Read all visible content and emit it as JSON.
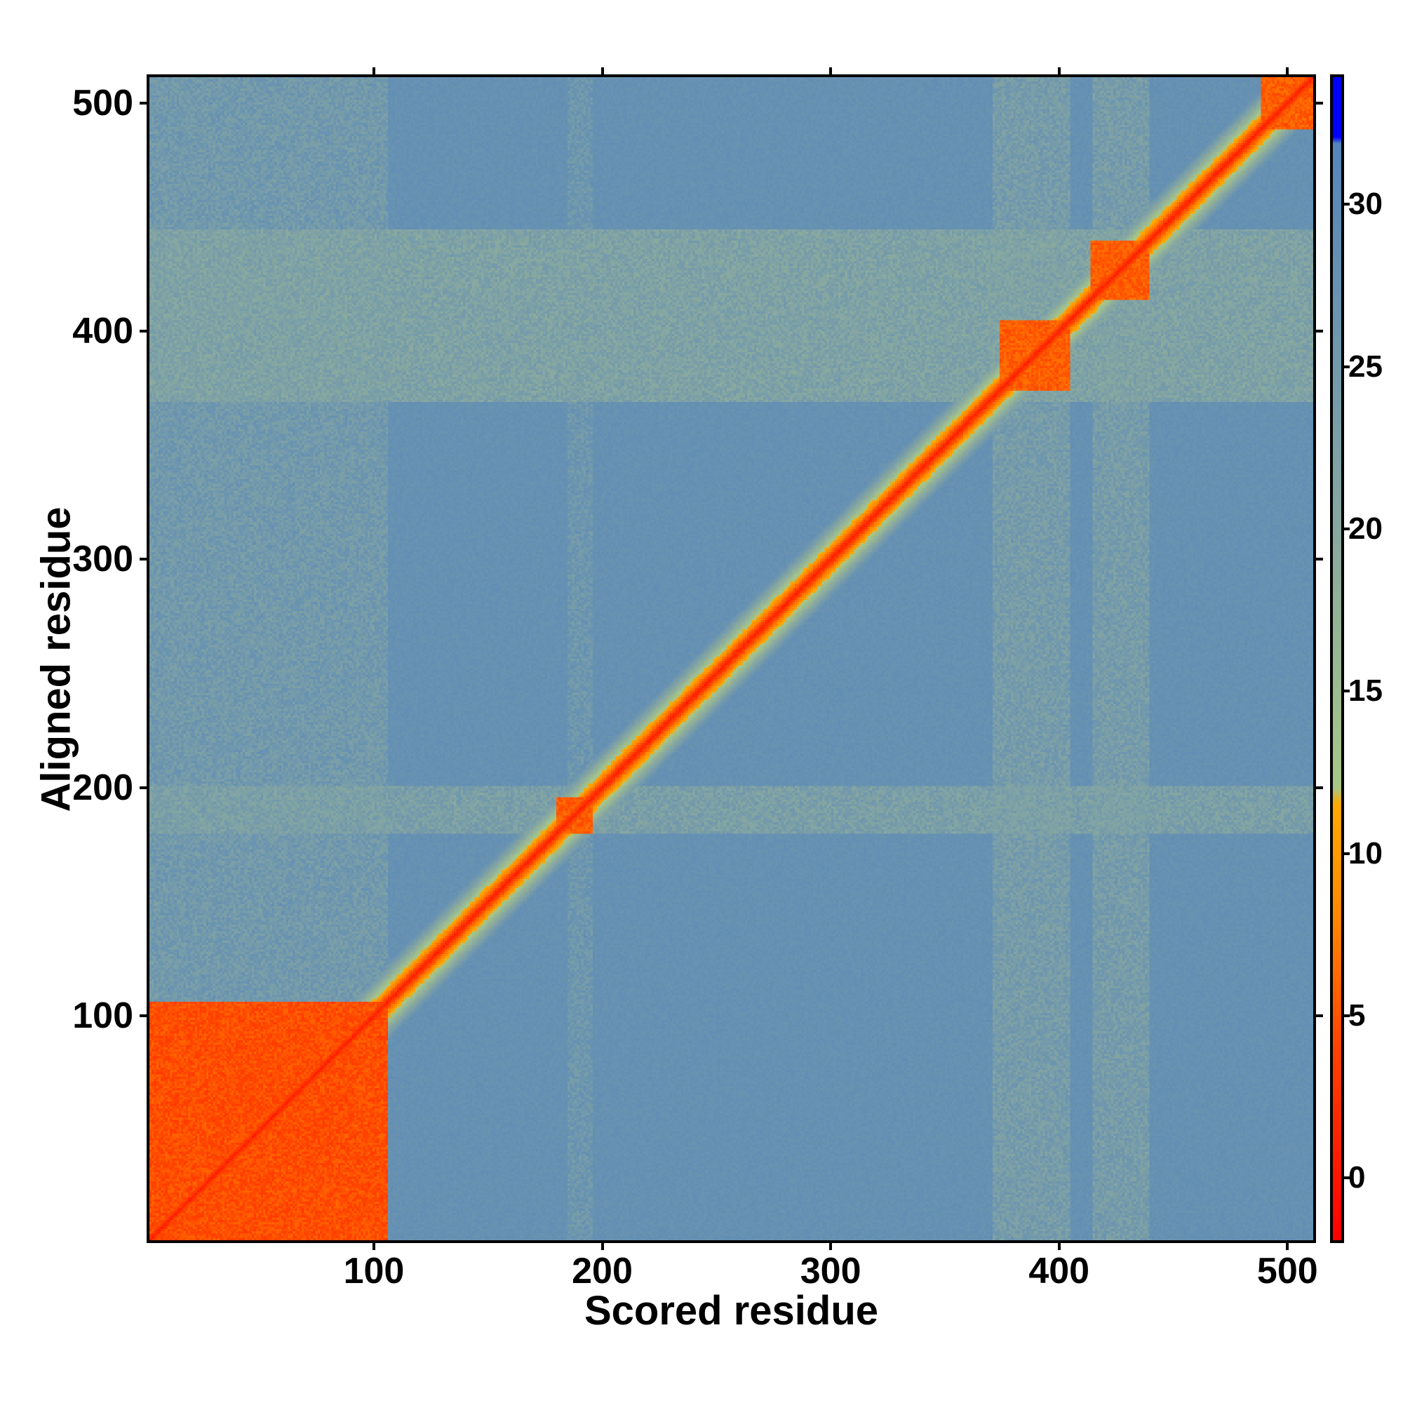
{
  "chart_data": {
    "type": "heatmap",
    "title": "",
    "xlabel": "Scored residue",
    "ylabel": "Aligned residue",
    "xlim": [
      1,
      512
    ],
    "ylim": [
      1,
      512
    ],
    "xticks": [
      100,
      200,
      300,
      400,
      500
    ],
    "yticks": [
      100,
      200,
      300,
      400,
      500
    ],
    "colorbar": {
      "range": [
        -2,
        34
      ],
      "ticks": [
        0,
        5,
        10,
        15,
        20,
        25,
        30
      ],
      "stops": [
        {
          "v": -2,
          "c": "#ff0000"
        },
        {
          "v": 4,
          "c": "#ff4400"
        },
        {
          "v": 8,
          "c": "#ff8800"
        },
        {
          "v": 11.5,
          "c": "#ffaa00"
        },
        {
          "v": 12,
          "c": "#a8c888"
        },
        {
          "v": 20,
          "c": "#88a8a0"
        },
        {
          "v": 32,
          "c": "#5585bb"
        },
        {
          "v": 32.1,
          "c": "#0000ff"
        },
        {
          "v": 34,
          "c": "#0000ff"
        }
      ]
    },
    "background_value": 28,
    "diagonal_value": 0,
    "low_error_blocks": [
      {
        "from": 1,
        "to": 105,
        "value": 3
      },
      {
        "from": 180,
        "to": 195,
        "value": 4
      },
      {
        "from": 375,
        "to": 405,
        "value": 4
      },
      {
        "from": 415,
        "to": 440,
        "value": 4
      },
      {
        "from": 490,
        "to": 512,
        "value": 4
      }
    ],
    "moderate_bands": [
      {
        "axis": "x",
        "from": 1,
        "to": 105,
        "value": 24
      },
      {
        "axis": "x",
        "from": 185,
        "to": 195,
        "value": 25
      },
      {
        "axis": "x",
        "from": 372,
        "to": 405,
        "value": 23
      },
      {
        "axis": "x",
        "from": 416,
        "to": 440,
        "value": 23
      },
      {
        "axis": "y",
        "from": 370,
        "to": 445,
        "value": 21
      },
      {
        "axis": "y",
        "from": 180,
        "to": 200,
        "value": 22
      }
    ]
  }
}
